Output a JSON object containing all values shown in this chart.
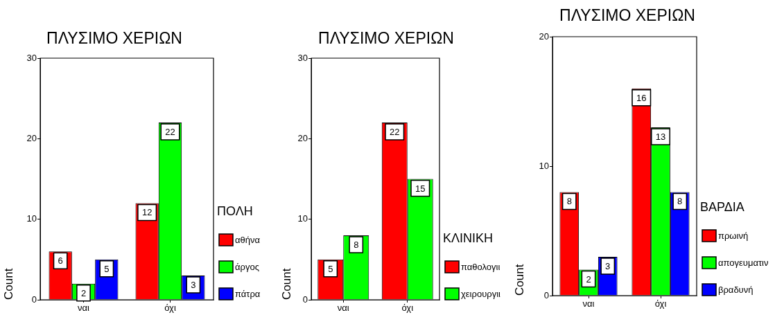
{
  "chart_data": [
    {
      "type": "bar",
      "title": "ΠΛΥΣΙΜΟ ΧΕΡΙΩΝ",
      "ylabel": "Count",
      "legend_title": "ΠΟΛΗ",
      "categories": [
        "ναι",
        "όχι"
      ],
      "series": [
        {
          "name": "αθήνα",
          "color": "#ff0000",
          "values": [
            6,
            12
          ]
        },
        {
          "name": "άργος",
          "color": "#00ff00",
          "values": [
            2,
            22
          ]
        },
        {
          "name": "πάτρα",
          "color": "#0000ff",
          "values": [
            5,
            3
          ]
        }
      ],
      "ylim": [
        0,
        30
      ],
      "yticks": [
        0,
        10,
        20,
        30
      ],
      "legend": "right",
      "data_labels": true
    },
    {
      "type": "bar",
      "title": "ΠΛΥΣΙΜΟ ΧΕΡΙΩΝ",
      "ylabel": "Count",
      "legend_title": "ΚΛΙΝΙΚΗ",
      "categories": [
        "ναι",
        "όχι"
      ],
      "series": [
        {
          "name": "παθολογιι",
          "color": "#ff0000",
          "values": [
            5,
            22
          ]
        },
        {
          "name": "χειρουργιι",
          "color": "#00ff00",
          "values": [
            8,
            15
          ]
        }
      ],
      "ylim": [
        0,
        30
      ],
      "yticks": [
        0,
        10,
        20,
        30
      ],
      "legend": "right",
      "data_labels": true
    },
    {
      "type": "bar",
      "title": "ΠΛΥΣΙΜΟ ΧΕΡΙΩΝ",
      "ylabel": "Count",
      "legend_title": "ΒΑΡΔΙΑ",
      "categories": [
        "ναι",
        "όχι"
      ],
      "series": [
        {
          "name": "πρωινή",
          "color": "#ff0000",
          "values": [
            8,
            16
          ]
        },
        {
          "name": "απογευματιν",
          "color": "#00ff00",
          "values": [
            2,
            13
          ]
        },
        {
          "name": "βραδυνή",
          "color": "#0000ff",
          "values": [
            3,
            8
          ]
        }
      ],
      "ylim": [
        0,
        20
      ],
      "yticks": [
        0,
        10,
        20
      ],
      "legend": "right",
      "data_labels": true
    }
  ]
}
